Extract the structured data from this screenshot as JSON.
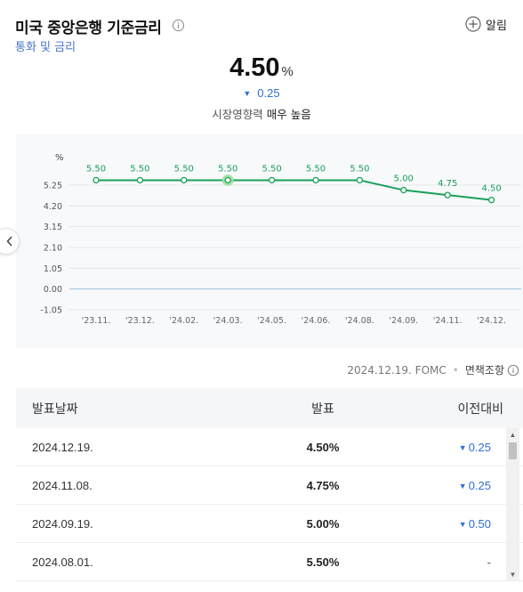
{
  "header": {
    "title": "미국 중앙은행 기준금리",
    "subtitle": "통화 및 금리",
    "alarm_label": "알림"
  },
  "summary": {
    "value": "4.50",
    "unit": "%",
    "change": "0.25",
    "change_direction": "down",
    "influence_label": "시장영향력",
    "influence_value": "매우 높음"
  },
  "colors": {
    "line": "#1aa05a",
    "down": "#2d6fd6",
    "subtitle": "#4b74c9"
  },
  "chart_data": {
    "type": "line",
    "ylabel": "%",
    "yticks": [
      "5.25",
      "4.20",
      "3.15",
      "2.10",
      "1.05",
      "0.00",
      "-1.05"
    ],
    "ytick_values": [
      5.25,
      4.2,
      3.15,
      2.1,
      1.05,
      0.0,
      -1.05
    ],
    "ylim": [
      -1.05,
      6.0
    ],
    "x": [
      "'23.11.",
      "'23.12.",
      "'24.02.",
      "'24.03.",
      "'24.05.",
      "'24.06.",
      "'24.08.",
      "'24.09.",
      "'24.11.",
      "'24.12."
    ],
    "series": [
      {
        "values": [
          5.5,
          5.5,
          5.5,
          5.5,
          5.5,
          5.5,
          5.5,
          5.0,
          4.75,
          4.5
        ],
        "labels": [
          "5.50",
          "5.50",
          "5.50",
          "5.50",
          "5.50",
          "5.50",
          "5.50",
          "5.00",
          "4.75",
          "4.50"
        ]
      }
    ],
    "highlight_index": 3,
    "grid": true
  },
  "source": {
    "date": "2024.12.19. FOMC",
    "disclaimer": "면책조항"
  },
  "table": {
    "headers": [
      "발표날짜",
      "발표",
      "이전대비"
    ],
    "rows": [
      {
        "date": "2024.12.19.",
        "value": "4.50%",
        "change": "0.25",
        "direction": "down"
      },
      {
        "date": "2024.11.08.",
        "value": "4.75%",
        "change": "0.25",
        "direction": "down"
      },
      {
        "date": "2024.09.19.",
        "value": "5.00%",
        "change": "0.50",
        "direction": "down"
      },
      {
        "date": "2024.08.01.",
        "value": "5.50%",
        "change": "-",
        "direction": "none"
      }
    ]
  }
}
